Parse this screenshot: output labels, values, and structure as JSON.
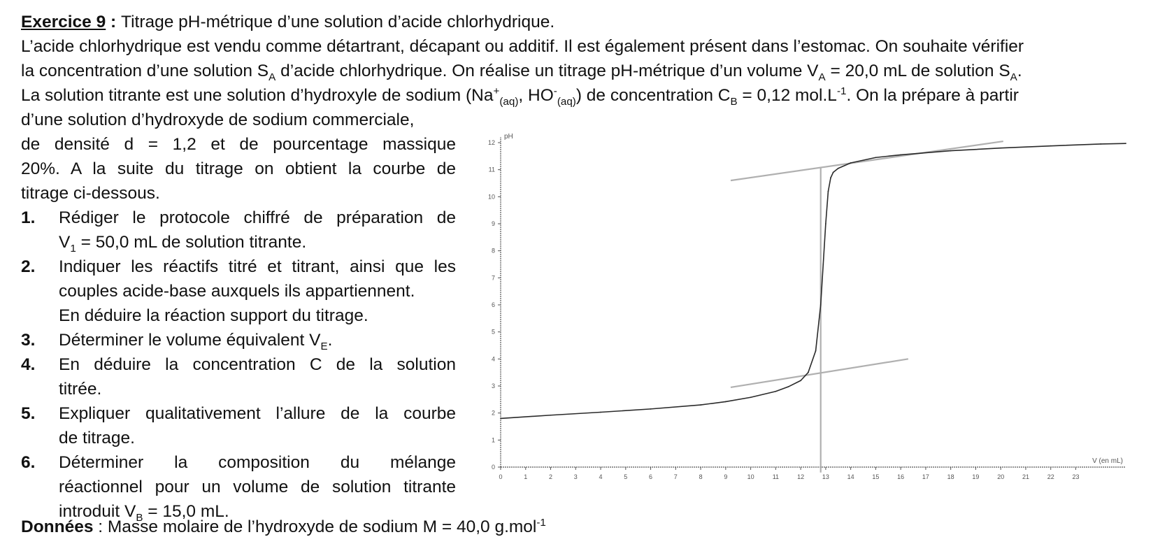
{
  "exercise": {
    "label": "Exercice 9",
    "sep": " : ",
    "title": "Titrage pH-métrique d’une solution d’acide chlorhydrique."
  },
  "intro": {
    "line1": "L’acide chlorhydrique est vendu comme détartrant, décapant ou additif. Il est également présent dans l’estomac. On souhaite vérifier",
    "line2a": "la concentration d’une solution S",
    "line2b": " d’acide chlorhydrique. On réalise un titrage pH-métrique d’un volume V",
    "line2c": " = 20,0 mL de solution S",
    "line3a": "La solution titrante est une solution d’hydroxyle de sodium (Na",
    "line3b": ", HO",
    "line3c": ") de concentration C",
    "line3d": " = 0,12 mol.L",
    "line3e": ". On la prépare à partir",
    "line4": "d’une solution d’hydroxyde de sodium commerciale,",
    "line5": "de densité d = 1,2 et de pourcentage massique",
    "line6": "20%. A la suite du titrage on obtient la courbe de",
    "line7": "titrage ci-dessous."
  },
  "sym": {
    "A": "A",
    "B": "B",
    "E": "E",
    "one": "1",
    "plus": "+",
    "minus": "-",
    "minus_one": "-1",
    "aq": "(aq)",
    "period": "."
  },
  "questions": [
    {
      "num": "1.",
      "l1": "Rédiger le protocole chiffré de préparation de",
      "l2a": "V",
      "l2b": " = 50,0 mL de solution titrante."
    },
    {
      "num": "2.",
      "l1": "Indiquer les réactifs titré et titrant, ainsi que les",
      "l2": "couples acide-base auxquels ils appartiennent.",
      "l3": "En déduire la réaction support du titrage."
    },
    {
      "num": "3.",
      "l1a": "Déterminer le volume équivalent V",
      "l1b": "."
    },
    {
      "num": "4.",
      "l1": "En déduire la concentration C de la solution",
      "l2": "titrée."
    },
    {
      "num": "5.",
      "l1": "Expliquer qualitativement l’allure de la courbe",
      "l2": "de titrage."
    },
    {
      "num": "6.",
      "l1": "Déterminer la composition du mélange",
      "l2": "réactionnel pour un volume de solution titrante",
      "l3a": "introduit V",
      "l3b": " = 15,0 mL."
    }
  ],
  "data_line": {
    "label": "Données",
    "sep": " : ",
    "text": "Masse molaire de l’hydroxyde de sodium M = 40,0 g.mol"
  },
  "chart_data": {
    "type": "line",
    "ylabel": "pH",
    "xlabel": "V (en mL)",
    "xlim": [
      0,
      25
    ],
    "ylim": [
      0,
      12
    ],
    "xticks": [
      0,
      1,
      2,
      3,
      4,
      5,
      6,
      7,
      8,
      9,
      10,
      11,
      12,
      13,
      14,
      15,
      16,
      17,
      18,
      19,
      20,
      21,
      22,
      23
    ],
    "yticks": [
      0,
      1,
      2,
      3,
      4,
      5,
      6,
      7,
      8,
      9,
      10,
      11,
      12
    ],
    "grid": false,
    "colors": {
      "curve": "#2a2a2a",
      "construction": "#b0b0b0",
      "axis": "#555555"
    },
    "series": [
      {
        "x": [
          0,
          2,
          4,
          6,
          8,
          9,
          10,
          11,
          11.5,
          12,
          12.3,
          12.6,
          12.8,
          12.9,
          13,
          13.1,
          13.2,
          13.3,
          13.5,
          14,
          15,
          16,
          18,
          20,
          22,
          24,
          25
        ],
        "y": [
          1.8,
          1.92,
          2.03,
          2.15,
          2.3,
          2.42,
          2.58,
          2.8,
          2.97,
          3.2,
          3.5,
          4.3,
          6.0,
          7.5,
          9.0,
          10.2,
          10.7,
          10.9,
          11.05,
          11.25,
          11.45,
          11.55,
          11.7,
          11.8,
          11.88,
          11.95,
          11.97
        ]
      }
    ],
    "construction_lines": [
      {
        "x": [
          9.2,
          16.3
        ],
        "y": [
          2.95,
          4.0
        ]
      },
      {
        "x": [
          9.2,
          20.1
        ],
        "y": [
          10.6,
          12.05
        ]
      },
      {
        "x": [
          12.8,
          12.8
        ],
        "y": [
          -0.2,
          11.1
        ]
      }
    ]
  }
}
